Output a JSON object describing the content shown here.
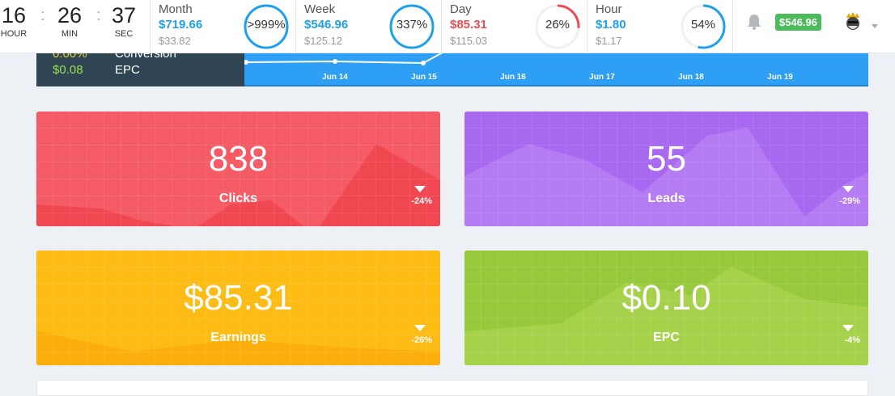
{
  "clock": {
    "hour": "16",
    "min": "26",
    "sec": "37",
    "hour_label": "HOUR",
    "min_label": "MIN",
    "sec_label": "SEC"
  },
  "stats": [
    {
      "title": "Month",
      "value": "$719.66",
      "previous": "$33.82",
      "percent": ">999%",
      "fill": 1.0,
      "color": "#1ea0ec",
      "value_color": "#1ea0ec"
    },
    {
      "title": "Week",
      "value": "$546.96",
      "previous": "$125.12",
      "percent": "337%",
      "fill": 1.0,
      "color": "#1ea0ec",
      "value_color": "#1ea0ec"
    },
    {
      "title": "Day",
      "value": "$85.31",
      "previous": "$115.03",
      "percent": "26%",
      "fill": 0.26,
      "color": "#ee4b53",
      "value_color": "#ee4b53"
    },
    {
      "title": "Hour",
      "value": "$1.80",
      "previous": "$1.17",
      "percent": "54%",
      "fill": 0.54,
      "color": "#1ea0ec",
      "value_color": "#1ea0ec"
    }
  ],
  "header_right": {
    "notification_icon": "bell-icon",
    "balance": "$546.96",
    "avatar_icon": "king-avatar",
    "dropdown_icon": "caret-down-icon"
  },
  "summary_panel": {
    "conversion_label": "Conversion",
    "epc_value": "$0.08",
    "epc_label": "EPC"
  },
  "chart_band": {
    "x_ticks": [
      "Jun 14",
      "Jun 15",
      "Jun 16",
      "Jun 17",
      "Jun 18",
      "Jun 19"
    ]
  },
  "cards": [
    {
      "value": "838",
      "label": "Clicks",
      "change": "-24%",
      "color": "#f45b65",
      "shade": "#ee444e"
    },
    {
      "value": "55",
      "label": "Leads",
      "change": "-29%",
      "color": "#a868f0",
      "shade": "#9a52ea"
    },
    {
      "value": "$85.31",
      "label": "Earnings",
      "change": "-26%",
      "color": "#fdbb14",
      "shade": "#fcab0a"
    },
    {
      "value": "$0.10",
      "label": "EPC",
      "change": "-4%",
      "color": "#97c93c",
      "shade": "#86bd2f"
    }
  ]
}
